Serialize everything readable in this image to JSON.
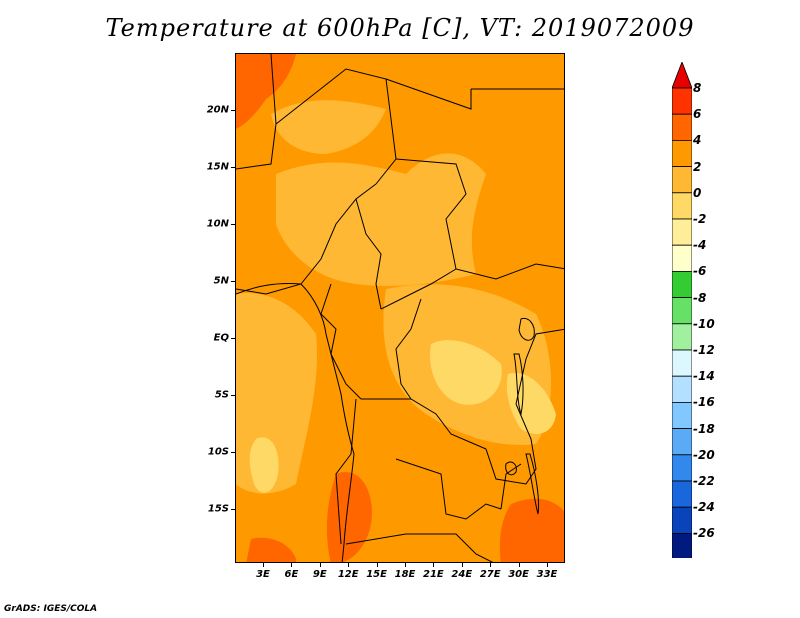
{
  "title": "Temperature at 600hPa [C], VT: 2019072009",
  "footer": "GrADS: IGES/COLA",
  "map": {
    "lat_labels": [
      "20N",
      "15N",
      "10N",
      "5N",
      "EQ",
      "5S",
      "10S",
      "15S"
    ],
    "lon_labels": [
      "3E",
      "6E",
      "9E",
      "12E",
      "15E",
      "18E",
      "21E",
      "24E",
      "27E",
      "30E",
      "33E"
    ]
  },
  "legend": {
    "labels": [
      "8",
      "6",
      "4",
      "2",
      "0",
      "-2",
      "-4",
      "-6",
      "-8",
      "-10",
      "-12",
      "-14",
      "-16",
      "-18",
      "-20",
      "-22",
      "-24",
      "-26"
    ],
    "colors": [
      "#ff3300",
      "#ff6600",
      "#ff9900",
      "#ffb833",
      "#ffd966",
      "#ffee99",
      "#ffffcc",
      "#33cc33",
      "#66e066",
      "#a0f0a0",
      "#ddf7ff",
      "#b3e0ff",
      "#80c8ff",
      "#5aaaf5",
      "#3388ee",
      "#1a66dd",
      "#0a44bb",
      "#001a80"
    ],
    "top_arrow_color": "#e60000",
    "bottom_arrow_color": "#ddddff"
  }
}
